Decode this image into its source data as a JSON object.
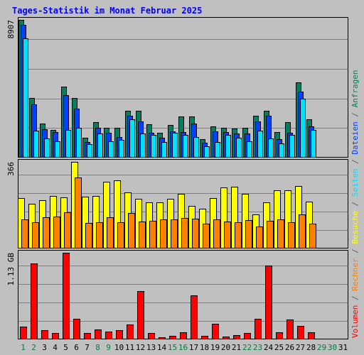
{
  "chart_data": {
    "type": "bar",
    "title": "Tages-Statistik im Monat Februar 2025",
    "x": [
      "1",
      "2",
      "3",
      "4",
      "5",
      "6",
      "7",
      "8",
      "9",
      "10",
      "11",
      "12",
      "13",
      "14",
      "15",
      "16",
      "17",
      "18",
      "19",
      "20",
      "21",
      "22",
      "23",
      "24",
      "25",
      "26",
      "27",
      "28",
      "29",
      "30",
      "31"
    ],
    "weekend_days": [
      "1",
      "2",
      "8",
      "9",
      "15",
      "16",
      "22",
      "23",
      "29",
      "30"
    ],
    "panels": [
      {
        "name": "top",
        "ymax_label": "8907",
        "ylim": [
          0,
          8907
        ],
        "grid": true,
        "series": [
          {
            "name": "Anfragen",
            "color": "#008060",
            "values": [
              8907,
              3850,
              2200,
              1800,
              4600,
              3850,
              1300,
              2300,
              1950,
              1950,
              3050,
              3050,
              2150,
              1600,
              2100,
              2650,
              2650,
              1200,
              2000,
              1950,
              1900,
              1950,
              2700,
              3050,
              1650,
              2300,
              4850,
              2500,
              null,
              null,
              null
            ]
          },
          {
            "name": "Dateien",
            "color": "#0040ff",
            "values": [
              8600,
              3450,
              1850,
              1650,
              4050,
              3150,
              1000,
              1950,
              1600,
              1350,
              2700,
              2350,
              1600,
              1300,
              1700,
              1650,
              2200,
              950,
              1700,
              1650,
              1550,
              1550,
              2350,
              2700,
              1200,
              1600,
              4250,
              2000,
              null,
              null,
              null
            ]
          },
          {
            "name": "Seiten",
            "color": "#00e0ff",
            "values": [
              7700,
              1750,
              1250,
              1050,
              1800,
              1950,
              850,
              1550,
              1050,
              1150,
              2500,
              1550,
              1450,
              1000,
              1600,
              1450,
              1350,
              750,
              1000,
              1450,
              1300,
              1050,
              1750,
              1250,
              900,
              1450,
              3800,
              1800,
              null,
              null,
              null
            ]
          }
        ]
      },
      {
        "name": "middle",
        "ymax_label": "366",
        "ylim": [
          0,
          366
        ],
        "grid": true,
        "series": [
          {
            "name": "Besuche",
            "color": "#ffff00",
            "values": [
              214,
              188,
              203,
              222,
              217,
              366,
              219,
              222,
              281,
              288,
              237,
              210,
              196,
              196,
              209,
              232,
              181,
              167,
              213,
              257,
              262,
              231,
              145,
              194,
              245,
              245,
              263,
              198,
              null,
              null,
              null
            ]
          },
          {
            "name": "Rechner",
            "color": "#ff8000",
            "values": [
              124,
              112,
              132,
              136,
              154,
              300,
              108,
              110,
              131,
              112,
              151,
              114,
              118,
              122,
              124,
              128,
              126,
              105,
              123,
              113,
              110,
              120,
              94,
              117,
              124,
              112,
              143,
              105,
              null,
              null,
              null
            ]
          }
        ]
      },
      {
        "name": "bottom",
        "ymax_label": "1.13 GB",
        "ylim": [
          0,
          1.13
        ],
        "grid": true,
        "series": [
          {
            "name": "Volumen",
            "color": "#ff0000",
            "values": [
              0.17,
              0.99,
              0.12,
              0.08,
              1.13,
              0.27,
              0.08,
              0.13,
              0.1,
              0.12,
              0.19,
              0.63,
              0.08,
              0.03,
              0.05,
              0.09,
              0.57,
              0.05,
              0.2,
              0.04,
              0.06,
              0.08,
              0.27,
              0.96,
              0.09,
              0.26,
              0.18,
              0.09,
              null,
              null,
              null
            ]
          }
        ]
      }
    ],
    "right_legend": [
      {
        "text": "Volumen",
        "color": "#ff0000"
      },
      {
        "text": " / ",
        "color": "#606060"
      },
      {
        "text": "Rechner",
        "color": "#ff8000"
      },
      {
        "text": " / ",
        "color": "#606060"
      },
      {
        "text": "Besuche",
        "color": "#ffff00"
      },
      {
        "text": " / ",
        "color": "#606060"
      },
      {
        "text": "Seiten",
        "color": "#00e0ff"
      },
      {
        "text": " / ",
        "color": "#606060"
      },
      {
        "text": "Dateien",
        "color": "#0040ff"
      },
      {
        "text": " / ",
        "color": "#606060"
      },
      {
        "text": "Anfragen",
        "color": "#008060"
      }
    ],
    "colors": {
      "background": "#c0c0c0",
      "plot_background": "#c0c0c0",
      "grid": "#808080",
      "title": "#0000ff",
      "weekday_label": "#000000",
      "weekend_label": "#008040",
      "bar_outline": "#000000"
    }
  }
}
